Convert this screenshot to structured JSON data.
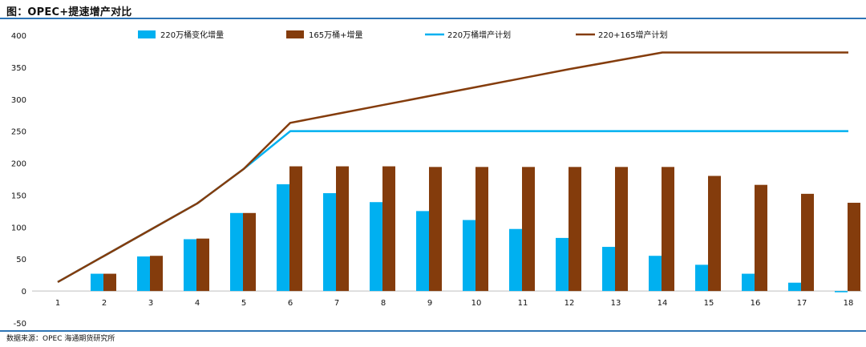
{
  "title": "图：OPEC+提速增产对比",
  "source": "数据来源：OPEC    海通期货研究所",
  "chart_data": {
    "type": "bar",
    "categories": [
      "1",
      "2",
      "3",
      "4",
      "5",
      "6",
      "7",
      "8",
      "9",
      "10",
      "11",
      "12",
      "13",
      "14",
      "15",
      "16",
      "17",
      "18"
    ],
    "ylim": [
      -50,
      400
    ],
    "yticks": [
      -50,
      0,
      50,
      100,
      150,
      200,
      250,
      300,
      350,
      400
    ],
    "grid": false,
    "legend": "top",
    "series": [
      {
        "name": "220万桶变化增量",
        "kind": "bar",
        "color": "#00b0f0",
        "values": [
          0,
          27,
          54,
          81,
          122,
          167,
          153,
          139,
          125,
          111,
          97,
          83,
          69,
          55,
          41,
          27,
          13,
          -2
        ]
      },
      {
        "name": "165万桶+增量",
        "kind": "bar",
        "color": "#843c0c",
        "values": [
          0,
          27,
          55,
          82,
          122,
          195,
          195,
          195,
          194,
          194,
          194,
          194,
          194,
          194,
          180,
          166,
          152,
          138
        ]
      },
      {
        "name": "220万桶增产计划",
        "kind": "line",
        "color": "#00b0f0",
        "values": [
          14,
          55,
          96,
          137,
          191,
          250,
          250,
          250,
          250,
          250,
          250,
          250,
          250,
          250,
          250,
          250,
          250,
          250
        ]
      },
      {
        "name": "220+165增产计划",
        "kind": "line",
        "color": "#843c0c",
        "values": [
          14,
          55,
          96,
          137,
          191,
          263,
          277,
          291,
          305,
          319,
          333,
          347,
          360,
          373,
          373,
          373,
          373,
          373
        ]
      }
    ]
  }
}
